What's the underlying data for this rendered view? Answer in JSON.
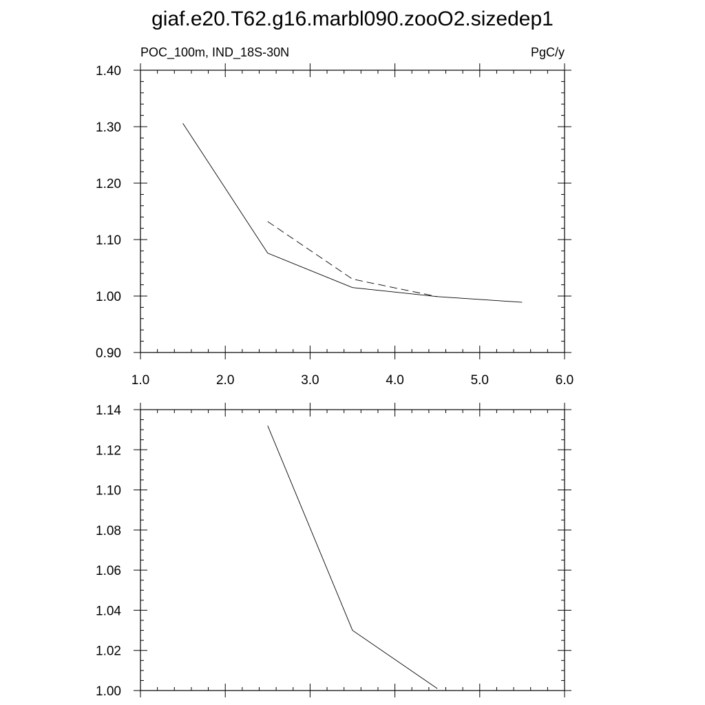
{
  "figure": {
    "title": "giaf.e20.T62.g16.marbl090.zooO2.sizedep1"
  },
  "chart_data": [
    {
      "type": "line",
      "title": "",
      "left_label": "POC_100m, IND_18S-30N",
      "right_label": "PgC/y",
      "xlabel": "",
      "ylabel": "",
      "xlim": [
        1.0,
        6.0
      ],
      "ylim": [
        0.9,
        1.4
      ],
      "x_ticks": [
        1.0,
        2.0,
        3.0,
        4.0,
        5.0,
        6.0
      ],
      "x_tick_labels": [
        "1.0",
        "2.0",
        "3.0",
        "4.0",
        "5.0",
        "6.0"
      ],
      "y_ticks": [
        0.9,
        1.0,
        1.1,
        1.2,
        1.3,
        1.4
      ],
      "y_tick_labels": [
        "0.90",
        "1.00",
        "1.10",
        "1.20",
        "1.30",
        "1.40"
      ],
      "x_minor_step": 0.2,
      "y_minor_step": 0.02,
      "grid": false,
      "series": [
        {
          "style": "solid",
          "color": "#000000",
          "x": [
            1.5,
            2.5,
            3.5,
            4.5,
            5.5
          ],
          "y": [
            1.306,
            1.076,
            1.015,
            0.999,
            0.989
          ]
        },
        {
          "style": "dashed",
          "color": "#000000",
          "x": [
            2.5,
            3.5,
            4.5
          ],
          "y": [
            1.132,
            1.03,
            0.999
          ]
        }
      ]
    },
    {
      "type": "line",
      "title": "",
      "xlabel": "",
      "ylabel": "",
      "xlim": [
        1.0,
        6.0
      ],
      "ylim": [
        1.0,
        1.14
      ],
      "x_ticks": [
        1.0,
        2.0,
        3.0,
        4.0,
        5.0,
        6.0
      ],
      "x_tick_labels": [],
      "y_ticks": [
        1.0,
        1.02,
        1.04,
        1.06,
        1.08,
        1.1,
        1.12,
        1.14
      ],
      "y_tick_labels": [
        "1.00",
        "1.02",
        "1.04",
        "1.06",
        "1.08",
        "1.10",
        "1.12",
        "1.14"
      ],
      "x_minor_step": 0.2,
      "y_minor_step": 0.005,
      "grid": false,
      "series": [
        {
          "style": "solid",
          "color": "#000000",
          "x": [
            2.5,
            3.5,
            4.5
          ],
          "y": [
            1.132,
            1.03,
            1.001
          ]
        }
      ]
    }
  ]
}
